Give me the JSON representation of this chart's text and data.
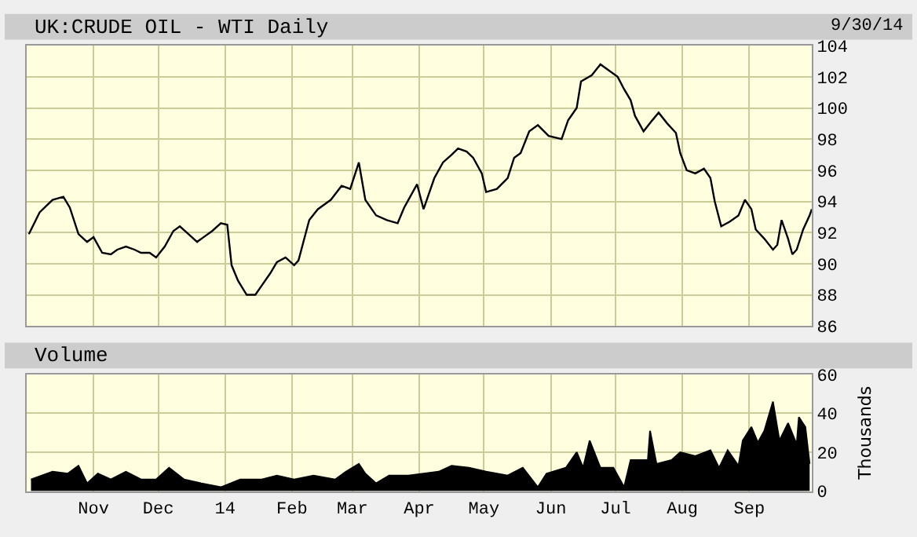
{
  "chart_data": [
    {
      "type": "line",
      "title": "UK:CRUDE OIL - WTI Daily",
      "annotations": [
        "9/30/14"
      ],
      "grid": true,
      "tick_labels": "y",
      "marker": "none",
      "line_style": "solid",
      "xlim": [
        "2013-10-01",
        "2014-09-30"
      ],
      "xticks": [
        {
          "value": "2013-11-01",
          "label": null
        },
        {
          "value": "2013-12-01",
          "label": null
        },
        {
          "value": "2014-01-01",
          "label": null
        },
        {
          "value": "2014-02-01",
          "label": null
        },
        {
          "value": "2014-03-01",
          "label": null
        },
        {
          "value": "2014-04-01",
          "label": null
        },
        {
          "value": "2014-05-01",
          "label": null
        },
        {
          "value": "2014-06-01",
          "label": null
        },
        {
          "value": "2014-07-01",
          "label": null
        },
        {
          "value": "2014-08-01",
          "label": null
        },
        {
          "value": "2014-09-01",
          "label": null
        }
      ],
      "ylim": [
        86,
        104
      ],
      "yticks": [
        86,
        88,
        90,
        92,
        94,
        96,
        98,
        100,
        102,
        104
      ],
      "x": [
        "2013-10-02",
        "2013-10-07",
        "2013-10-13",
        "2013-10-18",
        "2013-10-21",
        "2013-10-25",
        "2013-10-29",
        "2013-11-01",
        "2013-11-05",
        "2013-11-09",
        "2013-11-12",
        "2013-11-16",
        "2013-11-20",
        "2013-11-23",
        "2013-11-27",
        "2013-11-30",
        "2013-12-04",
        "2013-12-08",
        "2013-12-11",
        "2013-12-15",
        "2013-12-19",
        "2013-12-22",
        "2013-12-26",
        "2013-12-30",
        "2014-01-02",
        "2014-01-04",
        "2014-01-07",
        "2014-01-11",
        "2014-01-15",
        "2014-01-18",
        "2014-01-22",
        "2014-01-25",
        "2014-01-29",
        "2014-02-02",
        "2014-02-04",
        "2014-02-09",
        "2014-02-13",
        "2014-02-19",
        "2014-02-24",
        "2014-02-28",
        "2014-03-04",
        "2014-03-07",
        "2014-03-12",
        "2014-03-17",
        "2014-03-22",
        "2014-03-25",
        "2014-03-31",
        "2014-04-03",
        "2014-04-08",
        "2014-04-12",
        "2014-04-16",
        "2014-04-19",
        "2014-04-23",
        "2014-04-26",
        "2014-04-30",
        "2014-05-02",
        "2014-05-07",
        "2014-05-12",
        "2014-05-15",
        "2014-05-18",
        "2014-05-22",
        "2014-05-26",
        "2014-05-31",
        "2014-06-06",
        "2014-06-09",
        "2014-06-13",
        "2014-06-15",
        "2014-06-20",
        "2014-06-24",
        "2014-07-02",
        "2014-07-05",
        "2014-07-08",
        "2014-07-10",
        "2014-07-14",
        "2014-07-18",
        "2014-07-21",
        "2014-07-25",
        "2014-07-29",
        "2014-07-31",
        "2014-08-03",
        "2014-08-07",
        "2014-08-11",
        "2014-08-14",
        "2014-08-16",
        "2014-08-19",
        "2014-08-23",
        "2014-08-27",
        "2014-08-30",
        "2014-09-02",
        "2014-09-04",
        "2014-09-08",
        "2014-09-12",
        "2014-09-14",
        "2014-09-16",
        "2014-09-19",
        "2014-09-21",
        "2014-09-23",
        "2014-09-26",
        "2014-09-29",
        "2014-09-30"
      ],
      "series": [
        {
          "color": "#000000",
          "values": [
            91.9,
            93.3,
            94.1,
            94.3,
            93.6,
            91.9,
            91.4,
            91.7,
            90.7,
            90.6,
            90.9,
            91.1,
            90.9,
            90.7,
            90.7,
            90.4,
            91.1,
            92.1,
            92.4,
            91.9,
            91.4,
            91.7,
            92.1,
            92.6,
            92.5,
            89.9,
            88.9,
            88.0,
            88.0,
            88.6,
            89.4,
            90.1,
            90.4,
            89.9,
            90.2,
            92.8,
            93.5,
            94.1,
            95.0,
            94.8,
            96.5,
            94.1,
            93.1,
            92.8,
            92.6,
            93.6,
            95.1,
            93.5,
            95.5,
            96.5,
            97.0,
            97.4,
            97.2,
            96.8,
            95.8,
            94.6,
            94.8,
            95.5,
            96.8,
            97.1,
            98.5,
            98.9,
            98.2,
            98.0,
            99.2,
            100.0,
            101.7,
            102.1,
            102.8,
            102.0,
            101.2,
            100.5,
            99.5,
            98.5,
            99.2,
            99.7,
            99.0,
            98.4,
            97.1,
            96.0,
            95.8,
            96.1,
            95.5,
            94.0,
            92.4,
            92.7,
            93.1,
            94.1,
            93.5,
            92.2,
            91.6,
            90.9,
            91.2,
            92.8,
            91.6,
            90.6,
            90.9,
            92.2,
            93.1,
            93.5
          ]
        }
      ]
    },
    {
      "type": "area",
      "title": "Volume",
      "ylabel": "Thousands",
      "grid": true,
      "xlim": [
        "2013-10-01",
        "2014-09-30"
      ],
      "xticks": [
        {
          "value": "2013-11-01",
          "label": "Nov"
        },
        {
          "value": "2013-12-01",
          "label": "Dec"
        },
        {
          "value": "2014-01-01",
          "label": "14"
        },
        {
          "value": "2014-02-01",
          "label": "Feb"
        },
        {
          "value": "2014-03-01",
          "label": "Mar"
        },
        {
          "value": "2014-04-01",
          "label": "Apr"
        },
        {
          "value": "2014-05-01",
          "label": "May"
        },
        {
          "value": "2014-06-01",
          "label": "Jun"
        },
        {
          "value": "2014-07-01",
          "label": "Jul"
        },
        {
          "value": "2014-08-01",
          "label": "Aug"
        },
        {
          "value": "2014-09-01",
          "label": "Sep"
        }
      ],
      "ylim": [
        0,
        60
      ],
      "yticks": [
        0,
        20,
        40,
        60
      ],
      "x": [
        "2013-10-03",
        "2013-10-13",
        "2013-10-20",
        "2013-10-25",
        "2013-10-29",
        "2013-11-03",
        "2013-11-09",
        "2013-11-16",
        "2013-11-23",
        "2013-11-30",
        "2013-12-06",
        "2013-12-13",
        "2013-12-21",
        "2013-12-30",
        "2014-01-08",
        "2014-01-18",
        "2014-01-25",
        "2014-02-02",
        "2014-02-11",
        "2014-02-21",
        "2014-02-26",
        "2014-03-04",
        "2014-03-07",
        "2014-03-12",
        "2014-03-18",
        "2014-03-27",
        "2014-04-03",
        "2014-04-10",
        "2014-04-16",
        "2014-04-24",
        "2014-05-02",
        "2014-05-12",
        "2014-05-19",
        "2014-05-26",
        "2014-05-30",
        "2014-06-08",
        "2014-06-13",
        "2014-06-16",
        "2014-06-19",
        "2014-06-24",
        "2014-06-30",
        "2014-07-05",
        "2014-07-08",
        "2014-07-16",
        "2014-07-17",
        "2014-07-20",
        "2014-07-27",
        "2014-07-31",
        "2014-08-07",
        "2014-08-14",
        "2014-08-18",
        "2014-08-22",
        "2014-08-27",
        "2014-08-29",
        "2014-09-02",
        "2014-09-05",
        "2014-09-08",
        "2014-09-12",
        "2014-09-15",
        "2014-09-19",
        "2014-09-23",
        "2014-09-24",
        "2014-09-27",
        "2014-09-29"
      ],
      "series": [
        {
          "color": "#000000",
          "values": [
            6,
            10,
            9,
            13,
            4,
            9,
            6,
            10,
            6,
            6,
            12,
            6,
            4,
            2,
            6,
            6,
            8,
            6,
            8,
            6,
            10,
            14,
            9,
            4,
            8,
            8,
            9,
            10,
            13,
            12,
            10,
            8,
            12,
            2,
            9,
            12,
            20,
            12,
            26,
            12,
            12,
            2,
            16,
            16,
            31,
            14,
            16,
            20,
            18,
            21,
            12,
            21,
            13,
            26,
            33,
            25,
            31,
            46,
            26,
            35,
            24,
            38,
            33,
            14
          ]
        }
      ]
    }
  ]
}
